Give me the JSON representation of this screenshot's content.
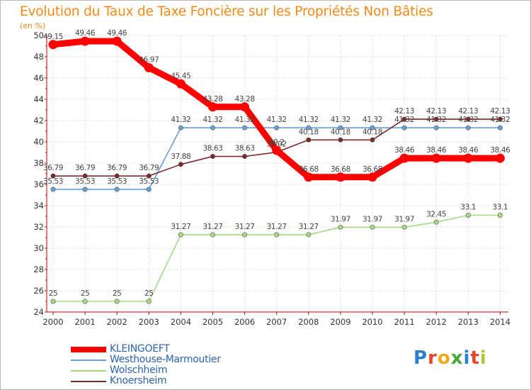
{
  "header": {
    "title": "Evolution du Taux de Taxe Foncière sur les Propriétés Non Bâties",
    "unit": "(en %)"
  },
  "chart_data": {
    "type": "line",
    "title": "Evolution du Taux de Taxe Foncière sur les Propriétés Non Bâties",
    "ylabel": "(en %)",
    "xlabel": "",
    "x": [
      "2000",
      "2001",
      "2002",
      "2003",
      "2004",
      "2005",
      "2006",
      "2007",
      "2008",
      "2009",
      "2010",
      "2011",
      "2012",
      "2013",
      "2014"
    ],
    "yticks": [
      "24",
      "26",
      "28",
      "30",
      "32",
      "34",
      "36",
      "38",
      "40",
      "42",
      "44",
      "46",
      "48",
      "50"
    ],
    "ylim": [
      24,
      50
    ],
    "grid": true,
    "legend_position": "bottom-left",
    "series": [
      {
        "name": "KLEINGOEFT",
        "color": "#ff0000",
        "values": [
          49.15,
          49.46,
          49.46,
          46.97,
          45.45,
          43.28,
          43.28,
          39.2,
          36.68,
          36.68,
          36.68,
          38.46,
          38.46,
          38.46,
          38.46
        ],
        "labels": [
          "49.15",
          "49.46",
          "49.46",
          "46.97",
          "45.45",
          "43.28",
          "43.28",
          "39.2",
          "36.68",
          "36.68",
          "36.68",
          "38.46",
          "38.46",
          "38.46",
          "38.46"
        ]
      },
      {
        "name": "Westhouse-Marmoutier",
        "color": "#6a9fd4",
        "values": [
          35.53,
          35.53,
          35.53,
          35.53,
          41.32,
          41.32,
          41.32,
          41.32,
          41.32,
          41.32,
          41.32,
          41.32,
          41.32,
          41.32,
          41.32
        ],
        "labels": [
          "35.53",
          "35.53",
          "35.53",
          "35.53",
          "41.32",
          "41.32",
          "41.32",
          "41.32",
          "41.32",
          "41.32",
          "41.32",
          "41.32",
          "41.32",
          "41.32",
          "41.32"
        ]
      },
      {
        "name": "Wolschheim",
        "color": "#a6d982",
        "values": [
          25,
          25,
          25,
          25,
          31.27,
          31.27,
          31.27,
          31.27,
          31.27,
          31.97,
          31.97,
          31.97,
          32.45,
          33.1,
          33.1
        ],
        "labels": [
          "25",
          "25",
          "25",
          "25",
          "31.27",
          "31.27",
          "31.27",
          "31.27",
          "31.27",
          "31.97",
          "31.97",
          "31.97",
          "32.45",
          "33.1",
          "33.1"
        ]
      },
      {
        "name": "Knoersheim",
        "color": "#7b2a2a",
        "values": [
          36.79,
          36.79,
          36.79,
          36.79,
          37.88,
          38.63,
          38.63,
          39.02,
          40.18,
          40.18,
          40.18,
          42.13,
          42.13,
          42.13,
          42.13
        ],
        "labels": [
          "36.79",
          "36.79",
          "36.79",
          "36.79",
          "37.88",
          "38.63",
          "38.63",
          "39.02",
          "40.18",
          "40.18",
          "40.18",
          "42.13",
          "42.13",
          "42.13",
          "42.13"
        ]
      }
    ]
  },
  "legend": {
    "items": [
      {
        "label": "KLEINGOEFT",
        "color": "#ff0000"
      },
      {
        "label": "Westhouse-Marmoutier",
        "color": "#6a9fd4"
      },
      {
        "label": "Wolschheim",
        "color": "#a6d982"
      },
      {
        "label": "Knoersheim",
        "color": "#7b2a2a"
      }
    ]
  },
  "logo": {
    "letters": [
      "P",
      "r",
      "o",
      "x",
      "i",
      "t",
      "i"
    ],
    "colors": [
      "#2a7fd0",
      "#e8452a",
      "#f2a81d",
      "#46a83a",
      "#2a7fd0",
      "#e8452a",
      "#a6c83a"
    ]
  }
}
